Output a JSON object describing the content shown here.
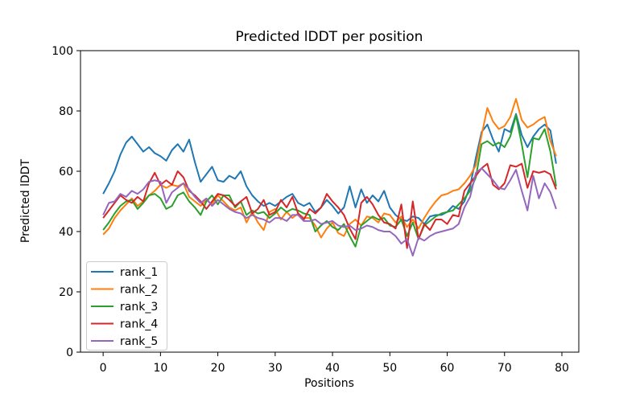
{
  "figure": {
    "background": "#ffffff",
    "text_color": "#000000",
    "spine_color": "#000000",
    "legend_border_color": "#cccccc"
  },
  "chart_data": {
    "type": "line",
    "title": "Predicted lDDT per position",
    "xlabel": "Positions",
    "ylabel": "Predicted lDDT",
    "ylim": [
      0,
      100
    ],
    "xticks": [
      0,
      10,
      20,
      30,
      40,
      50,
      60,
      70,
      80
    ],
    "yticks": [
      0,
      20,
      40,
      60,
      80,
      100
    ],
    "grid": false,
    "legend_position": "lower left",
    "x_start": 0,
    "x_step": 1,
    "series": [
      {
        "name": "rank_1",
        "color": "#1f77b4",
        "values": [
          52.5,
          56,
          60,
          65.5,
          69.5,
          71.5,
          69,
          66.5,
          68,
          66,
          65,
          63.5,
          67,
          69,
          66.5,
          70.5,
          63,
          56.5,
          59,
          61.5,
          57,
          56.5,
          58.5,
          57.5,
          60,
          55,
          52,
          50,
          48.5,
          49.5,
          48.5,
          50,
          51.5,
          52.5,
          49.5,
          48.5,
          49.5,
          46.5,
          48,
          50.5,
          48.5,
          46,
          48,
          55,
          48,
          54,
          49.5,
          52,
          50,
          53.5,
          48,
          45.5,
          44,
          43.5,
          45,
          44.5,
          42.5,
          45,
          45.5,
          45.5,
          46.5,
          48.5,
          47.5,
          50,
          55,
          64.5,
          73,
          75.5,
          70.5,
          66.5,
          74,
          73,
          79,
          72,
          68,
          71.5,
          74,
          75.5,
          73.5,
          62.5
        ]
      },
      {
        "name": "rank_2",
        "color": "#ff7f0e",
        "values": [
          39,
          41,
          44.5,
          47,
          49,
          51,
          48.5,
          50,
          52,
          53.5,
          55.5,
          54.5,
          55.5,
          55,
          56,
          51.5,
          50,
          48.5,
          50.5,
          49,
          52,
          50,
          48,
          47,
          48,
          43,
          46.5,
          43,
          40.5,
          46.5,
          47.5,
          44,
          46.5,
          44.5,
          46,
          44.5,
          44.5,
          42,
          38,
          41,
          43,
          39.5,
          38.5,
          42.5,
          44,
          42,
          45,
          44.5,
          43,
          46,
          45.5,
          43,
          45,
          41.5,
          44,
          41,
          44.5,
          47.5,
          50,
          52,
          52.5,
          53.5,
          54,
          56,
          58.5,
          62,
          72,
          81,
          76.5,
          74,
          75,
          78,
          84,
          77,
          74.5,
          75.5,
          77,
          78,
          70,
          65
        ]
      },
      {
        "name": "rank_3",
        "color": "#2ca02c",
        "values": [
          40.5,
          43,
          46,
          48.5,
          50,
          50.5,
          47.5,
          49.5,
          52,
          52.5,
          51,
          47.5,
          48.5,
          52,
          53,
          50,
          48,
          45.5,
          50,
          52,
          49,
          52,
          52,
          48,
          50,
          45.5,
          47,
          46,
          46.5,
          44.5,
          46,
          48,
          46.5,
          47.5,
          47,
          46,
          45.5,
          40,
          42,
          43.5,
          41.5,
          40.5,
          42.5,
          38.5,
          35,
          42,
          43.5,
          45,
          44,
          44.5,
          42,
          41.5,
          44,
          38.5,
          43,
          37.5,
          42,
          43.5,
          45,
          46,
          46.5,
          47,
          49,
          51,
          53.5,
          58,
          69,
          70,
          68.5,
          69.5,
          68,
          71.5,
          78.5,
          69,
          58,
          71,
          70.5,
          74,
          66.5,
          55
        ]
      },
      {
        "name": "rank_4",
        "color": "#d62728",
        "values": [
          44.5,
          47,
          49.5,
          52,
          50.5,
          49.5,
          51.5,
          50,
          56,
          59.5,
          55.5,
          57,
          55.5,
          60,
          58,
          53.5,
          52,
          50,
          47.5,
          50,
          52.5,
          52,
          50.5,
          48.5,
          50,
          51.5,
          46,
          47.5,
          50.5,
          45.5,
          46.5,
          50.5,
          48,
          51.5,
          46,
          44,
          47.5,
          46,
          48,
          52.5,
          50,
          48,
          45.5,
          41,
          37.5,
          49.5,
          51.5,
          49,
          45.5,
          43,
          42.5,
          41,
          49,
          34.5,
          50,
          37.5,
          42.5,
          40.5,
          44,
          44,
          42.5,
          45.5,
          45,
          53.5,
          56,
          58.5,
          61,
          62.5,
          55.5,
          54,
          56,
          62,
          61.5,
          62.5,
          54.5,
          60,
          59.5,
          60,
          59,
          54
        ]
      },
      {
        "name": "rank_5",
        "color": "#9467bd",
        "values": [
          45.5,
          49.5,
          50,
          52.5,
          51.5,
          53.5,
          52.5,
          54,
          56.5,
          57,
          56.5,
          49.5,
          53,
          54.5,
          56,
          54,
          51.5,
          49.5,
          51,
          48.5,
          50.5,
          49,
          47.5,
          46.5,
          46,
          44.5,
          45.5,
          44.5,
          44,
          43,
          44.5,
          44.5,
          43.5,
          45.5,
          45.5,
          43.5,
          43.5,
          44,
          42.5,
          43,
          43.5,
          42,
          41.5,
          42,
          40.5,
          41,
          42,
          41.5,
          40.5,
          40,
          40,
          38.5,
          36,
          37.5,
          32,
          38,
          37,
          38.5,
          39.5,
          40,
          40.5,
          41,
          42.5,
          48,
          51.5,
          59.5,
          61,
          59,
          57,
          54.5,
          54,
          57,
          60.5,
          53.5,
          47,
          58.5,
          51,
          56,
          53,
          47.5
        ]
      }
    ]
  }
}
